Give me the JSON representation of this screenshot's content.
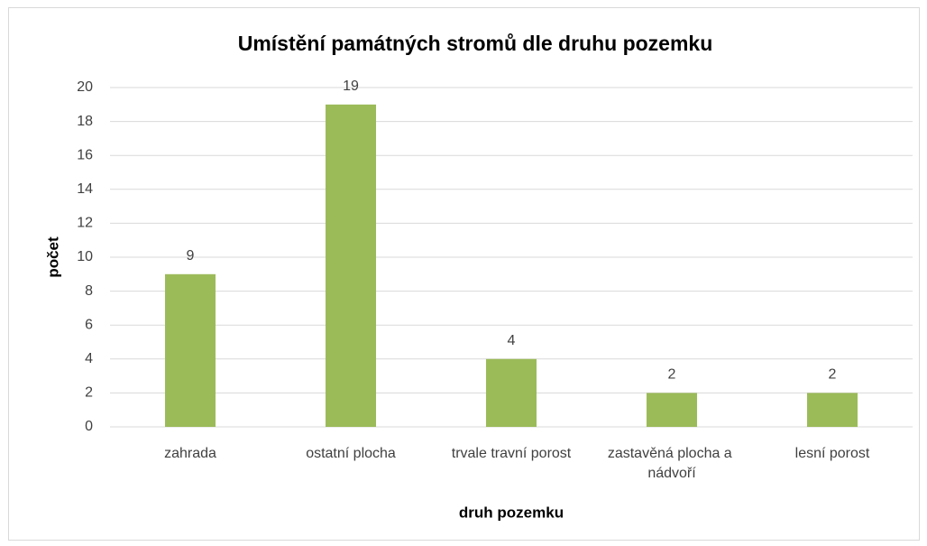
{
  "chart_data": {
    "type": "bar",
    "title": "Umístění památných stromů dle druhu pozemku",
    "x_label": "druh pozemku",
    "y_label": "počet",
    "categories": [
      "zahrada",
      "ostatní plocha",
      "trvale travní porost",
      "zastavěná plocha a nádvoří",
      "lesní porost"
    ],
    "values": [
      9,
      19,
      4,
      2,
      2
    ],
    "color": "#9bbb59",
    "ylim": [
      0,
      20
    ],
    "yticks": [
      0,
      2,
      4,
      6,
      8,
      10,
      12,
      14,
      16,
      18,
      20
    ],
    "grid": true
  }
}
